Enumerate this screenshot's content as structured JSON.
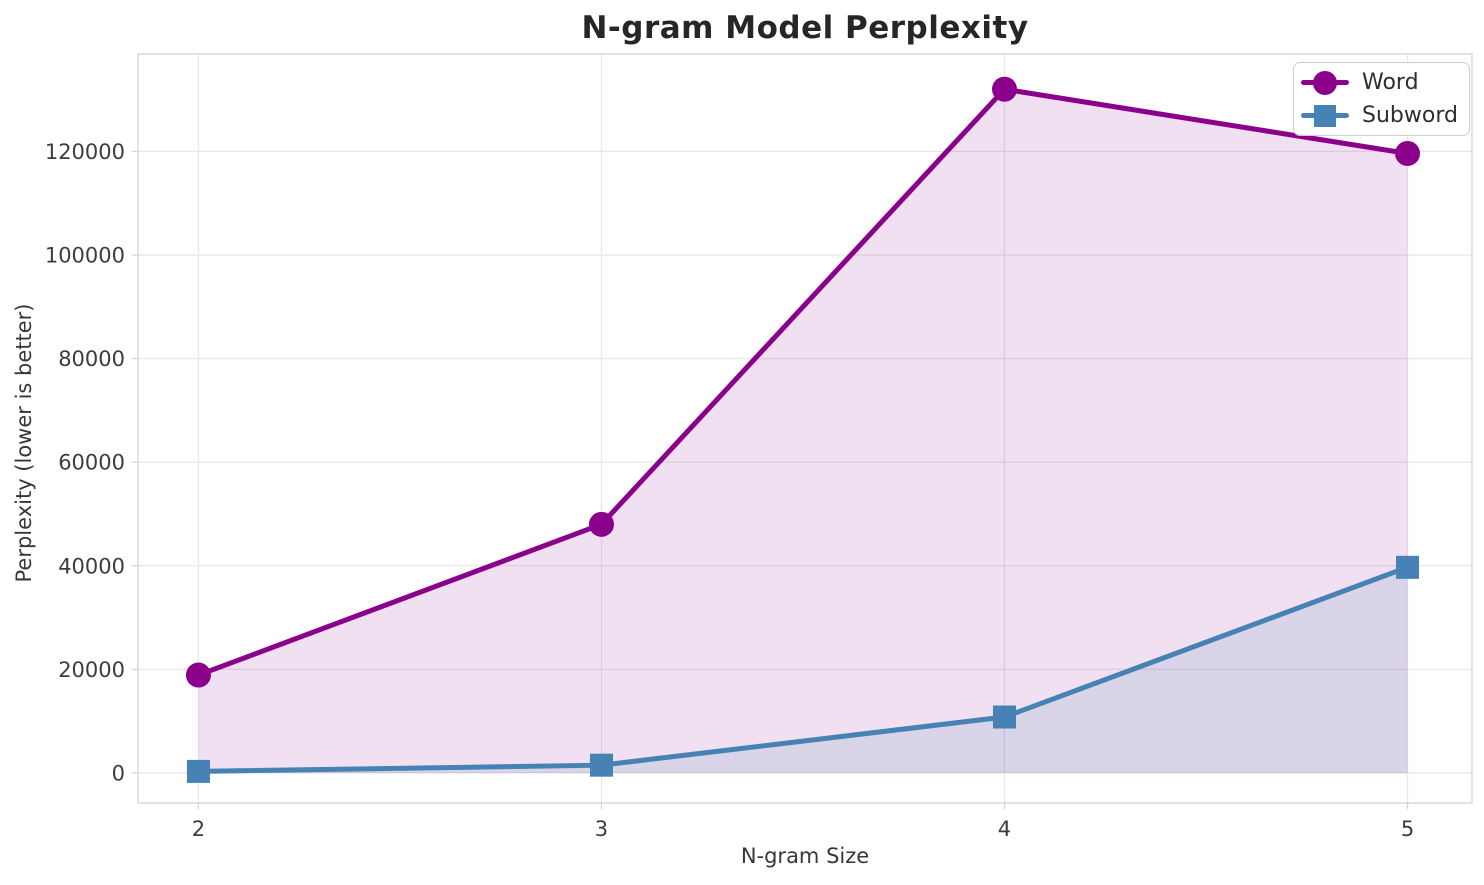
{
  "chart_data": {
    "type": "line",
    "title": "N-gram Model Perplexity",
    "xlabel": "N-gram Size",
    "ylabel": "Perplexity (lower is better)",
    "x": [
      2,
      3,
      4,
      5
    ],
    "xtick_labels": [
      "2",
      "3",
      "4",
      "5"
    ],
    "ytick_values": [
      0,
      20000,
      40000,
      60000,
      80000,
      100000,
      120000
    ],
    "ytick_labels": [
      "0",
      "20000",
      "40000",
      "60000",
      "80000",
      "100000",
      "120000"
    ],
    "series": [
      {
        "name": "Word",
        "values": [
          18900,
          48000,
          132000,
          119600
        ],
        "color": "#8B008B",
        "marker": "circle",
        "fill": true,
        "fill_alpha": 0.12
      },
      {
        "name": "Subword",
        "values": [
          300,
          1500,
          10800,
          39700
        ],
        "color": "#4682B4",
        "marker": "square",
        "fill": true,
        "fill_alpha": 0.13
      }
    ],
    "xlim": [
      1.85,
      5.16
    ],
    "ylim": [
      -5800,
      138800
    ],
    "fill_baseline": 0,
    "grid": true,
    "legend_position": "upper right"
  },
  "colors": {
    "background": "#ffffff",
    "grid": "#e8e8e8",
    "spine": "#d4d4d4",
    "tick_text": "#3d3d3d",
    "title_text": "#262626",
    "word_accent": "#8B008B",
    "subword_accent": "#4682B4"
  }
}
